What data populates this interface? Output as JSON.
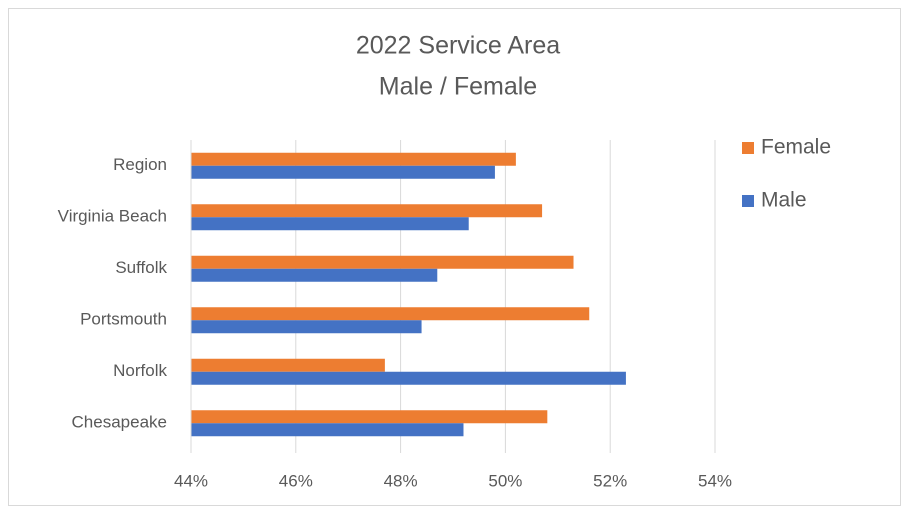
{
  "chart_data": {
    "type": "hbar",
    "title": [
      "2022 Service Area",
      "Male / Female"
    ],
    "categories": [
      "Region",
      "Virginia Beach",
      "Suffolk",
      "Portsmouth",
      "Norfolk",
      "Chesapeake"
    ],
    "series": [
      {
        "name": "Female",
        "color": "#ed7d31",
        "values": [
          50.2,
          50.7,
          51.3,
          51.6,
          47.7,
          50.8
        ]
      },
      {
        "name": "Male",
        "color": "#4472c4",
        "values": [
          49.8,
          49.3,
          48.7,
          48.4,
          52.3,
          49.2
        ]
      }
    ],
    "xlim": [
      44,
      54
    ],
    "xticks": [
      {
        "value": 44,
        "label": "44%"
      },
      {
        "value": 46,
        "label": "46%"
      },
      {
        "value": 48,
        "label": "48%"
      },
      {
        "value": 50,
        "label": "50%"
      },
      {
        "value": 52,
        "label": "52%"
      },
      {
        "value": 54,
        "label": "54%"
      }
    ],
    "grid": true,
    "legend": "right"
  }
}
